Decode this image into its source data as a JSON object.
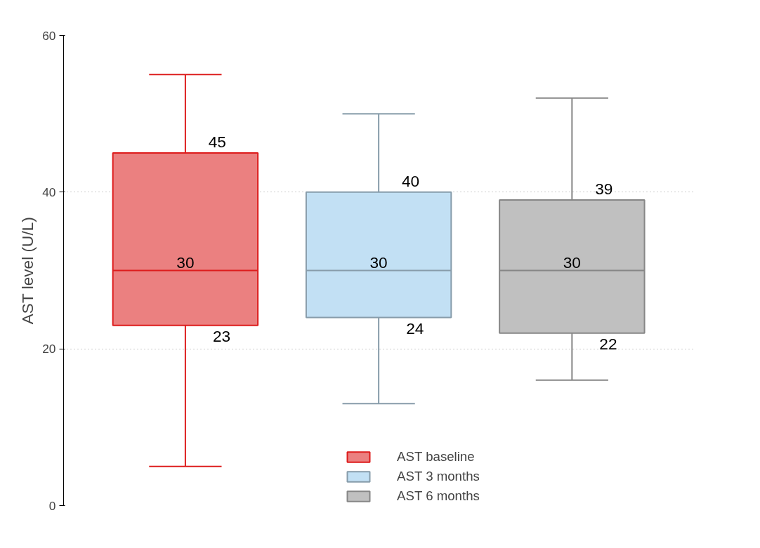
{
  "chart_data": {
    "type": "box",
    "ylabel": "AST level (U/L)",
    "categories": [
      null,
      null,
      null
    ],
    "series": [
      {
        "name": "AST baseline",
        "color": "#eb8080",
        "boxes": [
          {
            "low": 5,
            "q1": 23,
            "median": 30,
            "q3": 45,
            "high": 55
          },
          null,
          null
        ],
        "value_labels": [
          [
            "23",
            "30",
            "45"
          ],
          null,
          null
        ]
      },
      {
        "name": "AST 3 months",
        "color": "#c2e0f4",
        "boxes": [
          null,
          {
            "low": 13,
            "q1": 24,
            "median": 30,
            "q3": 40,
            "high": 50
          },
          null
        ],
        "value_labels": [
          null,
          [
            "24",
            "30",
            "40"
          ],
          null
        ]
      },
      {
        "name": "AST 6 months",
        "color": "#c0c0c0",
        "boxes": [
          null,
          null,
          {
            "low": 16,
            "q1": 22,
            "median": 30,
            "q3": 39,
            "high": 52
          }
        ],
        "value_labels": [
          null,
          null,
          [
            "22",
            "30",
            "39"
          ]
        ]
      }
    ],
    "ylim": [
      0,
      60
    ],
    "yticks": [
      0,
      20,
      40,
      60
    ],
    "grid": "y",
    "legend": "bottom"
  }
}
